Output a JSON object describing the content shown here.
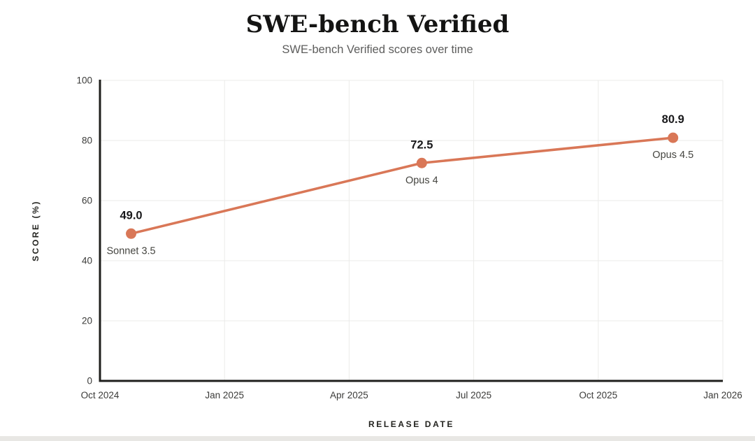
{
  "chart_data": {
    "type": "line",
    "title": "SWE-bench Verified",
    "subtitle": "SWE-bench Verified scores over time",
    "xlabel": "RELEASE DATE",
    "ylabel": "SCORE (%)",
    "x_tick_labels": [
      "Oct 2024",
      "Jan 2025",
      "Apr 2025",
      "Jul 2025",
      "Oct 2025",
      "Jan 2026"
    ],
    "x_tick_months": [
      0,
      3,
      6,
      9,
      12,
      15
    ],
    "x_range_months": [
      0,
      15
    ],
    "y_ticks": [
      0,
      20,
      40,
      60,
      80,
      100
    ],
    "ylim": [
      0,
      100
    ],
    "grid": true,
    "legend": "none",
    "series": [
      {
        "name": "SWE-bench Verified score",
        "color": "#D97757",
        "points": [
          {
            "label": "Sonnet 3.5",
            "value": 49.0,
            "value_label": "49.0",
            "x_months": 0.75
          },
          {
            "label": "Opus 4",
            "value": 72.5,
            "value_label": "72.5",
            "x_months": 7.75
          },
          {
            "label": "Opus 4.5",
            "value": 80.9,
            "value_label": "80.9",
            "x_months": 13.8
          }
        ]
      }
    ]
  },
  "colors": {
    "accent": "#D97757",
    "axis": "#1f1f1c",
    "grid": "#ebebe9",
    "title_text": "#141413",
    "subtitle_text": "#5d5d5c",
    "tick_text": "#3b3b39",
    "value_label_text": "#19191b",
    "model_label_text": "#454540"
  }
}
